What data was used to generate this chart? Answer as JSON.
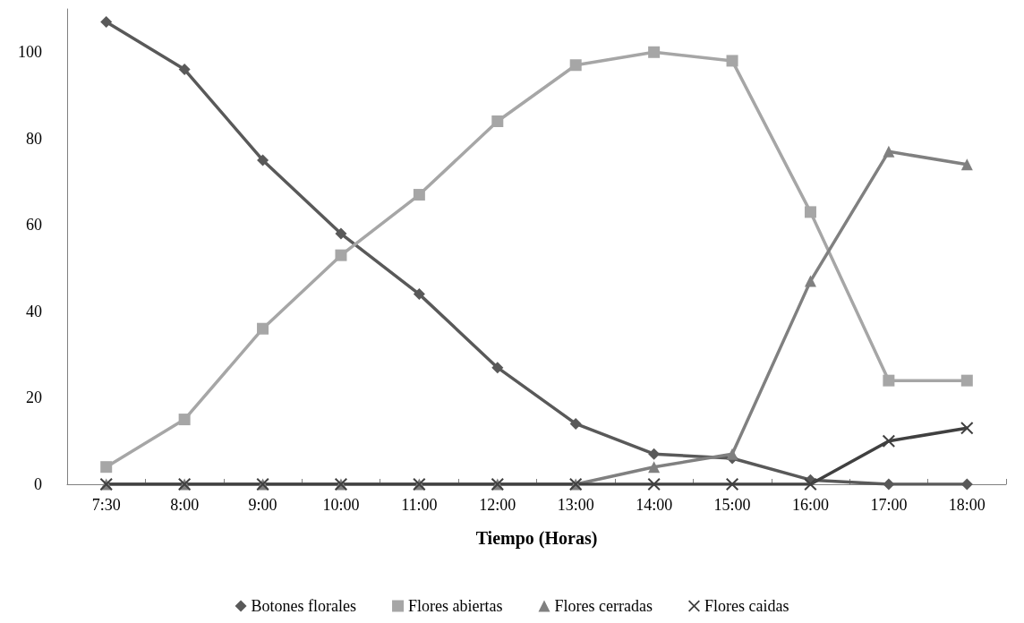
{
  "chart_data": {
    "type": "line",
    "xlabel": "Tiempo (Horas)",
    "categories": [
      "7:30",
      "8:00",
      "9:00",
      "10:00",
      "11:00",
      "12:00",
      "13:00",
      "14:00",
      "15:00",
      "16:00",
      "17:00",
      "18:00"
    ],
    "ylim": [
      0,
      110
    ],
    "yticks": [
      0,
      20,
      40,
      60,
      80,
      100
    ],
    "grid": false,
    "legend": "bottom",
    "line_style": "solid",
    "series": [
      {
        "name": "Botones florales",
        "color": "#595959",
        "marker": "diamond",
        "values": [
          107,
          96,
          75,
          58,
          44,
          27,
          14,
          7,
          6,
          1,
          0,
          0
        ]
      },
      {
        "name": "Flores abiertas",
        "color": "#a6a6a6",
        "marker": "square",
        "values": [
          4,
          15,
          36,
          53,
          67,
          84,
          97,
          100,
          98,
          63,
          24,
          24
        ]
      },
      {
        "name": "Flores cerradas",
        "color": "#808080",
        "marker": "triangle",
        "values": [
          0,
          0,
          0,
          0,
          0,
          0,
          0,
          4,
          7,
          47,
          77,
          74
        ]
      },
      {
        "name": "Flores caidas",
        "color": "#404040",
        "marker": "cross",
        "values": [
          0,
          0,
          0,
          0,
          0,
          0,
          0,
          0,
          0,
          0,
          10,
          13
        ]
      }
    ]
  }
}
